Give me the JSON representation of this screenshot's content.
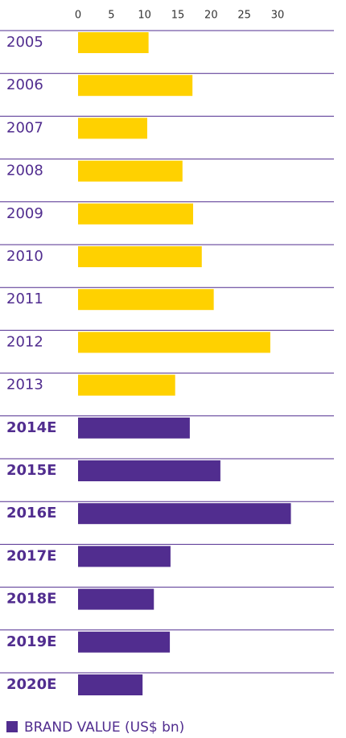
{
  "chart_data": {
    "type": "bar",
    "orientation": "horizontal",
    "categories": [
      "2005",
      "2006",
      "2007",
      "2008",
      "2009",
      "2010",
      "2011",
      "2012",
      "2013",
      "2014E",
      "2015E",
      "2016E",
      "2017E",
      "2018E",
      "2019E",
      "2020E"
    ],
    "values": [
      10.6,
      17.2,
      10.4,
      15.7,
      17.3,
      18.6,
      20.4,
      28.9,
      14.6,
      16.8,
      21.4,
      32.0,
      13.9,
      11.4,
      13.8,
      9.7
    ],
    "colors": [
      "#ffd100",
      "#ffd100",
      "#ffd100",
      "#ffd100",
      "#ffd100",
      "#ffd100",
      "#ffd100",
      "#ffd100",
      "#ffd100",
      "#512d8f",
      "#512d8f",
      "#512d8f",
      "#512d8f",
      "#512d8f",
      "#512d8f",
      "#512d8f"
    ],
    "xlim": [
      0,
      30
    ],
    "xticks": [
      0,
      5,
      10,
      15,
      20,
      25,
      30
    ],
    "legend": {
      "label": "BRAND VALUE (US$ bn)",
      "color": "#512d8f"
    }
  }
}
